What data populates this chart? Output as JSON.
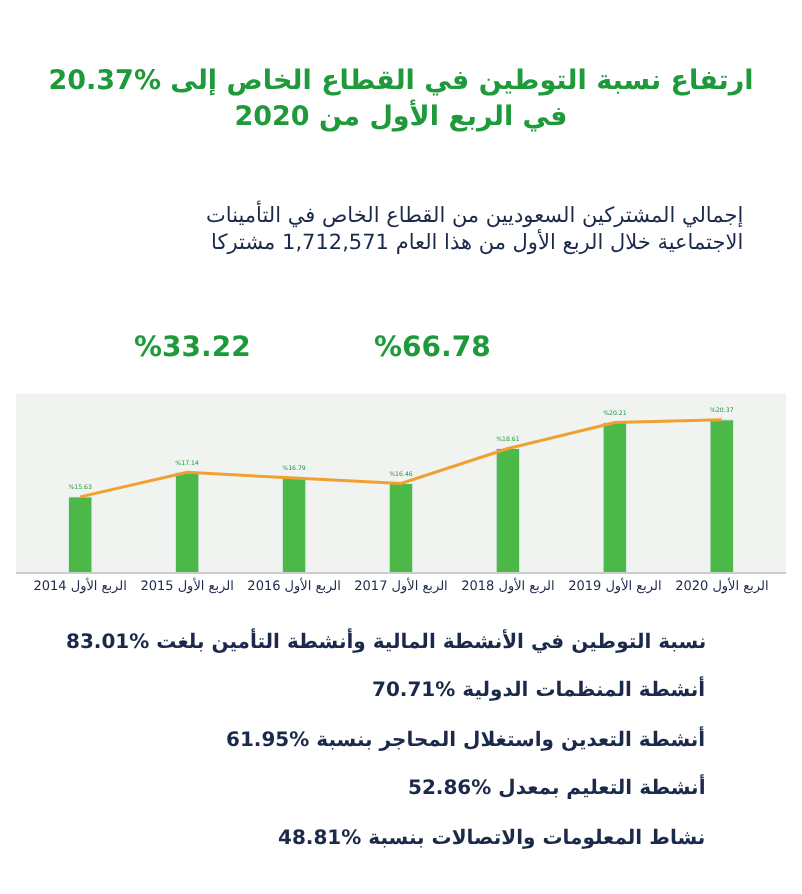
{
  "chart_data": {
    "type": "bar",
    "title": "ارتفاع نسبة التوطين في القطاع الخاص إلى %20.37\nفي الربع الأول من 2020",
    "subtitle": "إجمالي المشتركين السعوديين من القطاع الخاص في التأمينات\nالاجتماعية خلال الربع الأول من هذا العام 1,712,571 مشتركا",
    "categories": [
      "الربع الأول 2014",
      "الربع الأول 2015",
      "الربع الأول 2016",
      "الربع الأول 2017",
      "الربع الأول 2018",
      "الربع الأول 2019",
      "الربع الأول 2020"
    ],
    "series": [
      {
        "color": "#4cb848",
        "values": [
          15.63,
          17.14,
          16.79,
          16.46,
          18.61,
          20.21,
          20.37
        ],
        "value_labels": [
          "%15.63",
          "%17.14",
          "%16.79",
          "%16.46",
          "%18.61",
          "%20.21",
          "%20.37"
        ]
      },
      {
        "type": "line",
        "color": "#f0a030",
        "values": [
          15.63,
          17.14,
          16.79,
          16.46,
          18.61,
          20.21,
          20.37
        ]
      }
    ],
    "ylim": [
      11,
      22
    ],
    "tick_labels": "x",
    "grid": false,
    "annotations": [
      "%66.78",
      "%33.22",
      "نسبة التوطين في الأنشطة المالية وأنشطة التأمين بلغت %83.01",
      "أنشطة المنظمات الدولية %70.71",
      "أنشطة التعدين واستغلال المحاجر بنسبة %61.95",
      "أنشطة التعليم بمعدل %52.86",
      "نشاط المعلومات والاتصالات بنسبة %48.81"
    ]
  }
}
